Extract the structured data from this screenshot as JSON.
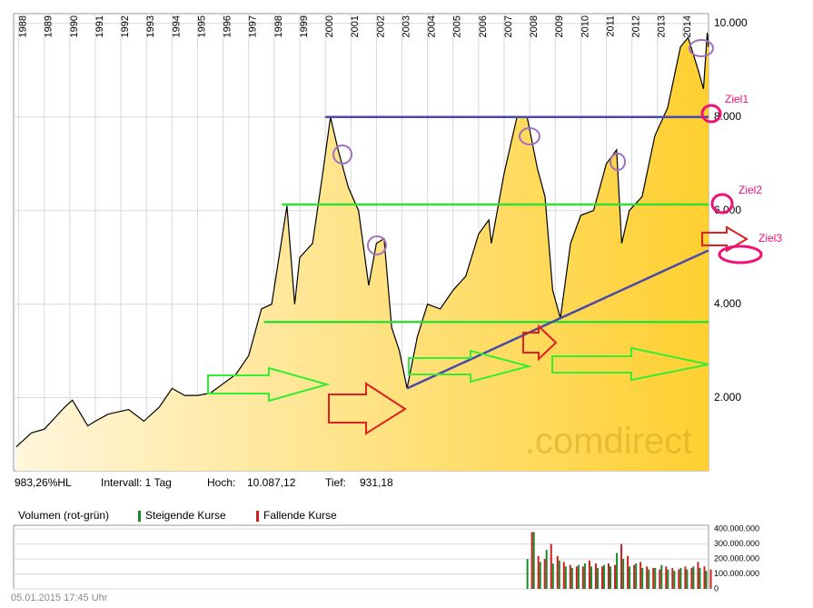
{
  "chart_data": [
    {
      "type": "area",
      "xlim": [
        1987.8,
        2015.0
      ],
      "xticks": [
        1988,
        1989,
        1990,
        1991,
        1992,
        1993,
        1994,
        1995,
        1996,
        1997,
        1998,
        1999,
        2000,
        2001,
        2002,
        2003,
        2004,
        2005,
        2006,
        2007,
        2008,
        2009,
        2010,
        2011,
        2012,
        2013,
        2014
      ],
      "ylim": [
        440,
        10210
      ],
      "yticks": [
        {
          "value": 2000,
          "label": "2.000"
        },
        {
          "value": 4000,
          "label": "4.000"
        },
        {
          "value": 6000,
          "label": "6.000"
        },
        {
          "value": 8000,
          "label": "8.000"
        },
        {
          "value": 10000,
          "label": "10.000"
        }
      ],
      "grid": true,
      "color": "#000000",
      "x": [
        1987.9,
        1988.5,
        1989.0,
        1989.8,
        1990.1,
        1990.7,
        1991.0,
        1991.5,
        1992.3,
        1992.9,
        1993.5,
        1994.0,
        1994.5,
        1995.0,
        1995.5,
        1996.0,
        1996.5,
        1997.0,
        1997.5,
        1997.9,
        1998.5,
        1998.8,
        1999.0,
        1999.5,
        1999.9,
        2000.2,
        2000.5,
        2000.9,
        2001.3,
        2001.7,
        2002.0,
        2002.3,
        2002.6,
        2002.9,
        2003.2,
        2003.6,
        2004.0,
        2004.5,
        2005.0,
        2005.5,
        2006.0,
        2006.4,
        2006.5,
        2007.0,
        2007.5,
        2007.9,
        2008.3,
        2008.6,
        2008.9,
        2009.2,
        2009.6,
        2010.0,
        2010.5,
        2011.0,
        2011.4,
        2011.6,
        2011.9,
        2012.4,
        2012.9,
        2013.4,
        2013.9,
        2014.2,
        2014.6,
        2014.8,
        2014.95,
        2015.0
      ],
      "values": [
        950,
        1250,
        1330,
        1800,
        1950,
        1400,
        1500,
        1650,
        1750,
        1500,
        1800,
        2200,
        2050,
        2050,
        2100,
        2300,
        2500,
        2900,
        3900,
        4000,
        6100,
        4000,
        5000,
        5300,
        6800,
        8000,
        7300,
        6500,
        6000,
        4400,
        5300,
        5400,
        3500,
        3000,
        2200,
        3300,
        4000,
        3900,
        4300,
        4600,
        5500,
        5800,
        5300,
        6800,
        8000,
        8000,
        6900,
        6300,
        4300,
        3700,
        5300,
        5900,
        6000,
        7000,
        7300,
        5300,
        6000,
        6300,
        7600,
        8200,
        9500,
        9700,
        9000,
        8600,
        9800,
        9500
      ],
      "lines": [
        {
          "color": "#4a4aa8",
          "x": [
            2000.0,
            2015.0
          ],
          "y": [
            8000,
            8000
          ]
        },
        {
          "color": "#33dd33",
          "x": [
            1998.3,
            2015.0
          ],
          "y": [
            6130,
            6130
          ]
        },
        {
          "color": "#33dd33",
          "x": [
            1997.6,
            2015.0
          ],
          "y": [
            3620,
            3620
          ]
        },
        {
          "color": "#4a4aa8",
          "x": [
            2003.2,
            2015.0
          ],
          "y": [
            2200,
            5150
          ]
        }
      ],
      "annotations": [
        "Ziel1",
        "Ziel2",
        "Ziel3"
      ],
      "watermark": ".comdirect",
      "stats": [
        "983,26%HL",
        "Intervall: 1 Tag",
        "Hoch:",
        "10.087,12",
        "Tief:",
        "931,18"
      ]
    },
    {
      "type": "bar",
      "title": "Volumen (rot-grün)",
      "xlim": [
        1987.8,
        2015.0
      ],
      "ylim": [
        0,
        425000000
      ],
      "yticks": [
        0,
        {
          "value": 100000000,
          "label": "100.000.000"
        },
        {
          "value": 200000000,
          "label": "200.000.000"
        },
        {
          "value": 300000000,
          "label": "300.000.000"
        },
        {
          "value": 400000000,
          "label": "400.000.000"
        }
      ],
      "x": [
        2008.0,
        2008.25,
        2008.5,
        2008.75,
        2009.0,
        2009.25,
        2009.5,
        2009.75,
        2010.0,
        2010.25,
        2010.5,
        2010.75,
        2011.0,
        2011.25,
        2011.5,
        2011.75,
        2012.0,
        2012.25,
        2012.5,
        2012.75,
        2013.0,
        2013.25,
        2013.5,
        2013.75,
        2014.0,
        2014.25,
        2014.5,
        2014.75,
        2015.0
      ],
      "series": [
        {
          "name": "Steigende Kurse",
          "color": "#1a8a2a",
          "values": [
            200000000,
            380000000,
            180000000,
            260000000,
            170000000,
            190000000,
            150000000,
            140000000,
            160000000,
            170000000,
            150000000,
            140000000,
            160000000,
            150000000,
            240000000,
            200000000,
            150000000,
            170000000,
            140000000,
            130000000,
            140000000,
            160000000,
            130000000,
            120000000,
            140000000,
            130000000,
            150000000,
            140000000,
            120000000
          ]
        },
        {
          "name": "Fallende Kurse",
          "color": "#cc2020",
          "values": [
            380000000,
            220000000,
            200000000,
            300000000,
            220000000,
            180000000,
            160000000,
            150000000,
            150000000,
            190000000,
            170000000,
            150000000,
            170000000,
            160000000,
            300000000,
            220000000,
            160000000,
            180000000,
            150000000,
            140000000,
            130000000,
            150000000,
            140000000,
            130000000,
            150000000,
            140000000,
            180000000,
            150000000,
            130000000
          ]
        }
      ]
    }
  ],
  "footer": "05.01.2015 17:45 Uhr"
}
